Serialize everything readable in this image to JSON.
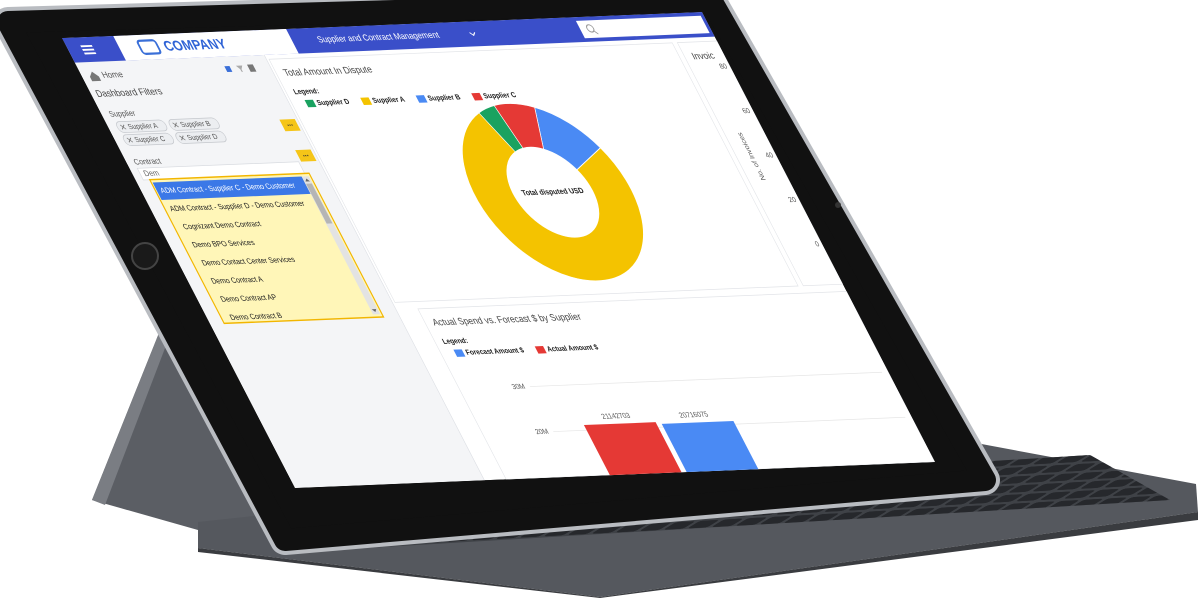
{
  "header": {
    "logo": "COMPANY",
    "title": "Supplier and Contract Management"
  },
  "sidebar": {
    "home": "Home",
    "title": "Dashboard Filters",
    "supplier_label": "Supplier",
    "suppliers": [
      "Supplier A",
      "Supplier B",
      "Supplier C",
      "Supplier D"
    ],
    "button": "...",
    "contract_label": "Contract",
    "contract_input": "Dem",
    "contracts": [
      "ADM Contract - Supplier C - Demo Customer",
      "ADM Contract - Supplier D - Demo Customer",
      "Cognizant Demo Contract",
      "Demo BPO Services",
      "Demo Contact Center Services",
      "Demo Contract A",
      "Demo Contract AP",
      "Demo Contract B"
    ]
  },
  "chart_data": [
    {
      "type": "donut",
      "title": "Total Amount In Dispute",
      "legend_title": "Legend:",
      "categories": [
        "Supplier D",
        "Supplier A",
        "Supplier B",
        "Supplier C"
      ],
      "values": [
        4,
        76,
        12,
        8
      ],
      "colors": [
        "#1aa260",
        "#f4c300",
        "#4a8af4",
        "#e53935"
      ],
      "center_label": "Total disputed USD"
    },
    {
      "type": "bar",
      "title": "Actual Spend vs. Forecast $ by Supplier",
      "legend_title": "Legend:",
      "categories": [
        null
      ],
      "series": [
        {
          "name": "Forecast Amount $",
          "color": "#4a8af4",
          "values": [
            20716075
          ]
        },
        {
          "name": "Actual Amount $",
          "color": "#e53935",
          "values": [
            21142703
          ]
        }
      ],
      "ylim": [
        0,
        30000000
      ],
      "yticks": [
        {
          "value": 20000000,
          "label": "20M"
        },
        {
          "value": 30000000,
          "label": "30M"
        }
      ],
      "grid": true
    },
    {
      "type": "bar",
      "title": "Invoic",
      "y_label": "No. of Invoices",
      "ylim": [
        0,
        80
      ],
      "yticks": [
        0,
        20,
        40,
        60,
        80
      ],
      "grid": false
    }
  ]
}
